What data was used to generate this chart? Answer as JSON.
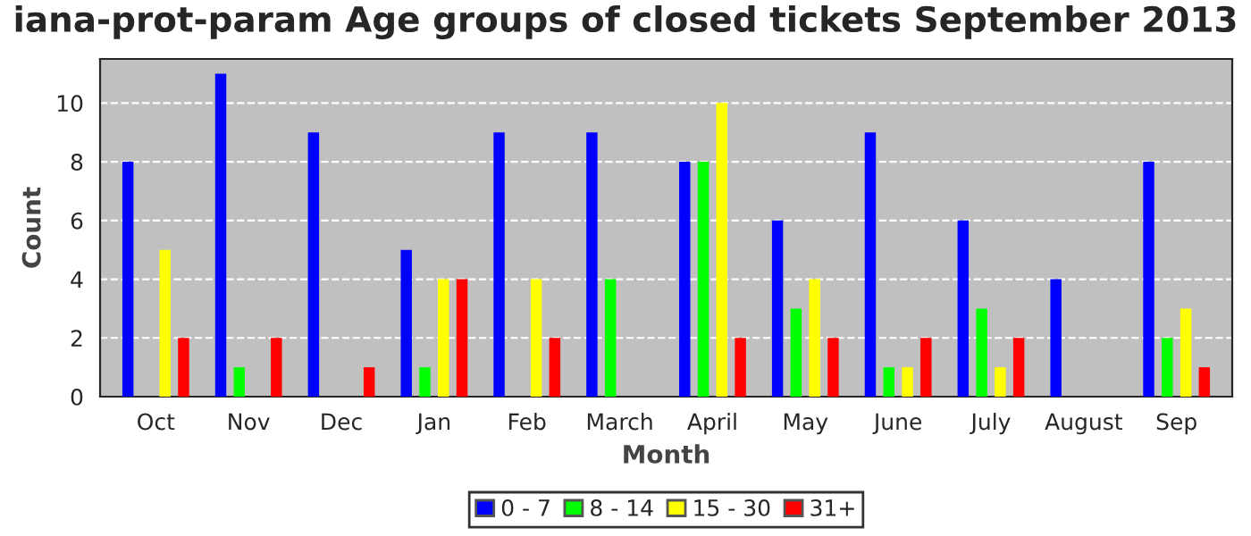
{
  "chart_data": {
    "type": "bar",
    "title": "iana-prot-param Age groups of closed tickets September 2013",
    "xlabel": "Month",
    "ylabel": "Count",
    "categories": [
      "Oct",
      "Nov",
      "Dec",
      "Jan",
      "Feb",
      "March",
      "April",
      "May",
      "June",
      "July",
      "August",
      "Sep"
    ],
    "series": [
      {
        "name": "0 - 7",
        "color": "#0000ff",
        "values": [
          8,
          11,
          9,
          5,
          9,
          9,
          8,
          6,
          9,
          6,
          4,
          8
        ]
      },
      {
        "name": "8 - 14",
        "color": "#00ff00",
        "values": [
          0,
          1,
          0,
          1,
          0,
          4,
          8,
          3,
          1,
          3,
          0,
          2
        ]
      },
      {
        "name": "15 - 30",
        "color": "#ffff00",
        "values": [
          5,
          0,
          0,
          4,
          4,
          0,
          10,
          4,
          1,
          1,
          0,
          3
        ]
      },
      {
        "name": "31+",
        "color": "#ff0000",
        "values": [
          2,
          2,
          1,
          4,
          2,
          0,
          2,
          2,
          2,
          2,
          0,
          1
        ]
      }
    ],
    "ylim": [
      0,
      11.5
    ],
    "yticks": [
      0,
      2,
      4,
      6,
      8,
      10
    ],
    "grid": "y",
    "legend": "bottom"
  }
}
